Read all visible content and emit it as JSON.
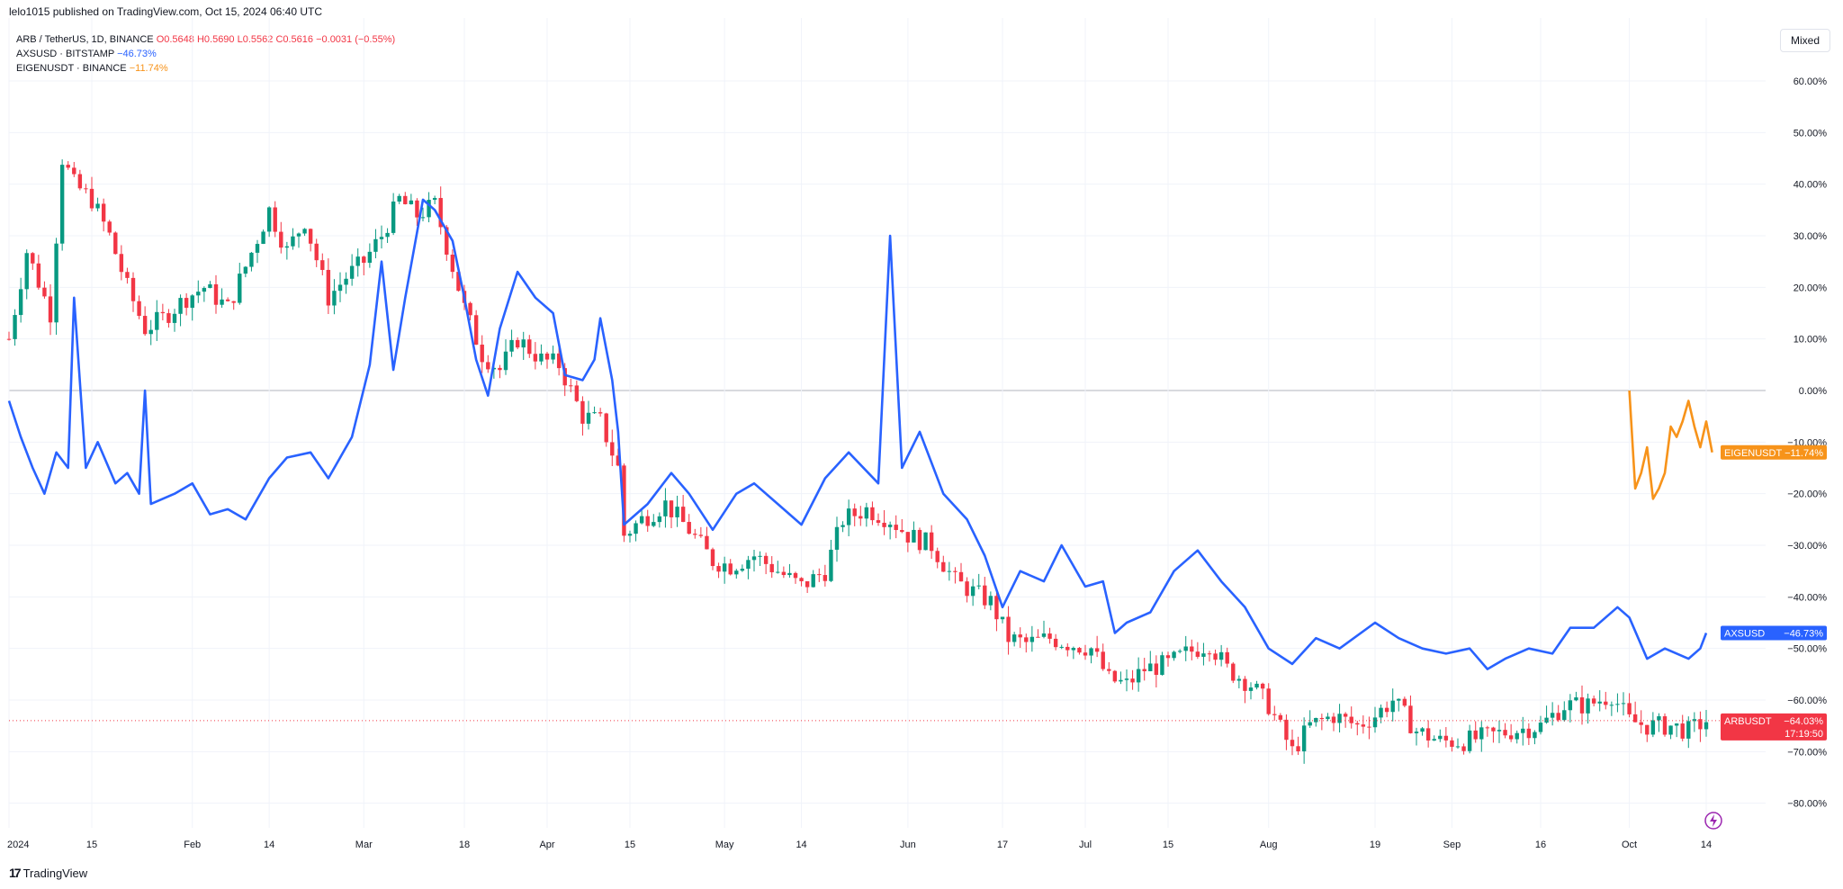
{
  "header": {
    "text": "lelo1015 published on TradingView.com, Oct 15, 2024 06:40 UTC"
  },
  "legend": {
    "arb": {
      "name": "ARB / TetherUS, 1D, BINANCE",
      "o": "O0.5648",
      "h": "H0.5690",
      "l": "L0.5562",
      "c": "C0.5616",
      "chg": "−0.0031 (−0.55%)"
    },
    "ax": {
      "name": "AXSUSD · BITSTAMP",
      "chg": "−46.73%"
    },
    "eigen": {
      "name": "EIGENUSDT · BINANCE",
      "chg": "−11.74%"
    }
  },
  "toolbar": {
    "mixed_label": "Mixed"
  },
  "footer": {
    "brand": "TradingView"
  },
  "colors": {
    "up": "#089981",
    "down": "#f23645",
    "ax": "#2962ff",
    "eigen": "#f7931a",
    "grid": "#f0f3fa",
    "zero": "#b2b5be"
  },
  "chart_data": {
    "type": "line",
    "y_unit": "% change",
    "ylim": [
      -85,
      65
    ],
    "x_range": [
      "2023-12-31",
      "2024-10-25"
    ],
    "y_ticks": [
      "60.00%",
      "50.00%",
      "40.00%",
      "30.00%",
      "20.00%",
      "10.00%",
      "0.00%",
      "−10.00%",
      "−20.00%",
      "−30.00%",
      "−40.00%",
      "−50.00%",
      "−60.00%",
      "−70.00%",
      "−80.00%"
    ],
    "y_tick_values": [
      60,
      50,
      40,
      30,
      20,
      10,
      0,
      -10,
      -20,
      -30,
      -40,
      -50,
      -60,
      -70,
      -80
    ],
    "x_ticks": [
      {
        "label": "2024",
        "date": "2024-01-01"
      },
      {
        "label": "15",
        "date": "2024-01-15"
      },
      {
        "label": "Feb",
        "date": "2024-02-01"
      },
      {
        "label": "14",
        "date": "2024-02-14"
      },
      {
        "label": "Mar",
        "date": "2024-03-01"
      },
      {
        "label": "18",
        "date": "2024-03-18"
      },
      {
        "label": "Apr",
        "date": "2024-04-01"
      },
      {
        "label": "15",
        "date": "2024-04-15"
      },
      {
        "label": "May",
        "date": "2024-05-01"
      },
      {
        "label": "14",
        "date": "2024-05-14"
      },
      {
        "label": "Jun",
        "date": "2024-06-01"
      },
      {
        "label": "17",
        "date": "2024-06-17"
      },
      {
        "label": "Jul",
        "date": "2024-07-01"
      },
      {
        "label": "15",
        "date": "2024-07-15"
      },
      {
        "label": "Aug",
        "date": "2024-08-01"
      },
      {
        "label": "19",
        "date": "2024-08-19"
      },
      {
        "label": "Sep",
        "date": "2024-09-01"
      },
      {
        "label": "16",
        "date": "2024-09-16"
      },
      {
        "label": "Oct",
        "date": "2024-10-01"
      },
      {
        "label": "14",
        "date": "2024-10-14"
      }
    ],
    "series": [
      {
        "name": "ARBUSDT",
        "style": "candles",
        "last_label": "−64.03%",
        "countdown": "17:19:50",
        "close_points": [
          [
            "2024-01-01",
            10
          ],
          [
            "2024-01-04",
            27
          ],
          [
            "2024-01-08",
            15
          ],
          [
            "2024-01-10",
            45
          ],
          [
            "2024-01-12",
            40
          ],
          [
            "2024-01-15",
            37
          ],
          [
            "2024-01-18",
            30
          ],
          [
            "2024-01-21",
            20
          ],
          [
            "2024-01-24",
            12
          ],
          [
            "2024-01-27",
            14
          ],
          [
            "2024-01-31",
            18
          ],
          [
            "2024-02-03",
            20
          ],
          [
            "2024-02-07",
            16
          ],
          [
            "2024-02-10",
            24
          ],
          [
            "2024-02-14",
            35
          ],
          [
            "2024-02-17",
            27
          ],
          [
            "2024-02-20",
            33
          ],
          [
            "2024-02-24",
            18
          ],
          [
            "2024-02-27",
            22
          ],
          [
            "2024-03-01",
            25
          ],
          [
            "2024-03-04",
            30
          ],
          [
            "2024-03-07",
            37
          ],
          [
            "2024-03-10",
            34
          ],
          [
            "2024-03-13",
            36
          ],
          [
            "2024-03-15",
            28
          ],
          [
            "2024-03-18",
            16
          ],
          [
            "2024-03-21",
            7
          ],
          [
            "2024-03-24",
            4
          ],
          [
            "2024-03-27",
            10
          ],
          [
            "2024-03-31",
            6
          ],
          [
            "2024-04-03",
            5
          ],
          [
            "2024-04-07",
            -5
          ],
          [
            "2024-04-10",
            -6
          ],
          [
            "2024-04-13",
            -15
          ],
          [
            "2024-04-14",
            -28
          ],
          [
            "2024-04-17",
            -25
          ],
          [
            "2024-04-21",
            -22
          ],
          [
            "2024-04-25",
            -27
          ],
          [
            "2024-04-29",
            -33
          ],
          [
            "2024-05-02",
            -34
          ],
          [
            "2024-05-06",
            -32
          ],
          [
            "2024-05-10",
            -35
          ],
          [
            "2024-05-14",
            -38
          ],
          [
            "2024-05-18",
            -35
          ],
          [
            "2024-05-21",
            -25
          ],
          [
            "2024-05-25",
            -23
          ],
          [
            "2024-05-29",
            -25
          ],
          [
            "2024-06-01",
            -28
          ],
          [
            "2024-06-05",
            -30
          ],
          [
            "2024-06-09",
            -37
          ],
          [
            "2024-06-12",
            -39
          ],
          [
            "2024-06-15",
            -41
          ],
          [
            "2024-06-18",
            -48
          ],
          [
            "2024-06-21",
            -49
          ],
          [
            "2024-06-25",
            -48
          ],
          [
            "2024-06-28",
            -49
          ],
          [
            "2024-07-02",
            -50
          ],
          [
            "2024-07-05",
            -56
          ],
          [
            "2024-07-08",
            -57
          ],
          [
            "2024-07-11",
            -54
          ],
          [
            "2024-07-15",
            -53
          ],
          [
            "2024-07-18",
            -51
          ],
          [
            "2024-07-22",
            -49
          ],
          [
            "2024-07-25",
            -54
          ],
          [
            "2024-07-29",
            -57
          ],
          [
            "2024-08-01",
            -61
          ],
          [
            "2024-08-05",
            -70
          ],
          [
            "2024-08-08",
            -65
          ],
          [
            "2024-08-12",
            -63
          ],
          [
            "2024-08-16",
            -65
          ],
          [
            "2024-08-19",
            -63
          ],
          [
            "2024-08-22",
            -60
          ],
          [
            "2024-08-26",
            -66
          ],
          [
            "2024-08-30",
            -68
          ],
          [
            "2024-09-03",
            -68
          ],
          [
            "2024-09-07",
            -67
          ],
          [
            "2024-09-11",
            -66
          ],
          [
            "2024-09-16",
            -65
          ],
          [
            "2024-09-20",
            -61
          ],
          [
            "2024-09-24",
            -61
          ],
          [
            "2024-09-28",
            -59
          ],
          [
            "2024-10-01",
            -64
          ],
          [
            "2024-10-04",
            -65
          ],
          [
            "2024-10-08",
            -65
          ],
          [
            "2024-10-11",
            -66
          ],
          [
            "2024-10-14",
            -64
          ]
        ]
      },
      {
        "name": "AXSUSD",
        "style": "line",
        "last_label": "−46.73%",
        "points": [
          [
            "2024-01-01",
            -2
          ],
          [
            "2024-01-03",
            -9
          ],
          [
            "2024-01-05",
            -15
          ],
          [
            "2024-01-07",
            -20
          ],
          [
            "2024-01-09",
            -12
          ],
          [
            "2024-01-11",
            -15
          ],
          [
            "2024-01-12",
            18
          ],
          [
            "2024-01-14",
            -15
          ],
          [
            "2024-01-16",
            -10
          ],
          [
            "2024-01-19",
            -18
          ],
          [
            "2024-01-21",
            -16
          ],
          [
            "2024-01-23",
            -20
          ],
          [
            "2024-01-24",
            0
          ],
          [
            "2024-01-25",
            -22
          ],
          [
            "2024-01-29",
            -20
          ],
          [
            "2024-02-01",
            -18
          ],
          [
            "2024-02-04",
            -24
          ],
          [
            "2024-02-07",
            -23
          ],
          [
            "2024-02-10",
            -25
          ],
          [
            "2024-02-14",
            -17
          ],
          [
            "2024-02-17",
            -13
          ],
          [
            "2024-02-21",
            -12
          ],
          [
            "2024-02-24",
            -17
          ],
          [
            "2024-02-28",
            -9
          ],
          [
            "2024-03-02",
            5
          ],
          [
            "2024-03-04",
            25
          ],
          [
            "2024-03-06",
            4
          ],
          [
            "2024-03-08",
            18
          ],
          [
            "2024-03-11",
            37
          ],
          [
            "2024-03-13",
            35
          ],
          [
            "2024-03-16",
            29
          ],
          [
            "2024-03-18",
            18
          ],
          [
            "2024-03-20",
            6
          ],
          [
            "2024-03-22",
            -1
          ],
          [
            "2024-03-24",
            12
          ],
          [
            "2024-03-27",
            23
          ],
          [
            "2024-03-30",
            18
          ],
          [
            "2024-04-02",
            15
          ],
          [
            "2024-04-04",
            3
          ],
          [
            "2024-04-07",
            2
          ],
          [
            "2024-04-09",
            6
          ],
          [
            "2024-04-10",
            14
          ],
          [
            "2024-04-12",
            2
          ],
          [
            "2024-04-13",
            -8
          ],
          [
            "2024-04-14",
            -26
          ],
          [
            "2024-04-18",
            -22
          ],
          [
            "2024-04-22",
            -16
          ],
          [
            "2024-04-25",
            -20
          ],
          [
            "2024-04-29",
            -27
          ],
          [
            "2024-05-03",
            -20
          ],
          [
            "2024-05-06",
            -18
          ],
          [
            "2024-05-10",
            -22
          ],
          [
            "2024-05-14",
            -26
          ],
          [
            "2024-05-18",
            -17
          ],
          [
            "2024-05-22",
            -12
          ],
          [
            "2024-05-27",
            -18
          ],
          [
            "2024-05-29",
            30
          ],
          [
            "2024-05-31",
            -15
          ],
          [
            "2024-06-03",
            -8
          ],
          [
            "2024-06-07",
            -20
          ],
          [
            "2024-06-11",
            -25
          ],
          [
            "2024-06-14",
            -32
          ],
          [
            "2024-06-17",
            -42
          ],
          [
            "2024-06-20",
            -35
          ],
          [
            "2024-06-24",
            -37
          ],
          [
            "2024-06-27",
            -30
          ],
          [
            "2024-07-01",
            -38
          ],
          [
            "2024-07-04",
            -37
          ],
          [
            "2024-07-06",
            -47
          ],
          [
            "2024-07-08",
            -45
          ],
          [
            "2024-07-12",
            -43
          ],
          [
            "2024-07-16",
            -35
          ],
          [
            "2024-07-20",
            -31
          ],
          [
            "2024-07-24",
            -37
          ],
          [
            "2024-07-28",
            -42
          ],
          [
            "2024-08-01",
            -50
          ],
          [
            "2024-08-05",
            -53
          ],
          [
            "2024-08-09",
            -48
          ],
          [
            "2024-08-13",
            -50
          ],
          [
            "2024-08-19",
            -45
          ],
          [
            "2024-08-23",
            -48
          ],
          [
            "2024-08-27",
            -50
          ],
          [
            "2024-08-31",
            -51
          ],
          [
            "2024-09-04",
            -50
          ],
          [
            "2024-09-07",
            -54
          ],
          [
            "2024-09-10",
            -52
          ],
          [
            "2024-09-14",
            -50
          ],
          [
            "2024-09-18",
            -51
          ],
          [
            "2024-09-21",
            -46
          ],
          [
            "2024-09-25",
            -46
          ],
          [
            "2024-09-29",
            -42
          ],
          [
            "2024-10-01",
            -44
          ],
          [
            "2024-10-04",
            -52
          ],
          [
            "2024-10-07",
            -50
          ],
          [
            "2024-10-11",
            -52
          ],
          [
            "2024-10-13",
            -50
          ],
          [
            "2024-10-14",
            -47
          ]
        ]
      },
      {
        "name": "EIGENUSDT",
        "style": "line",
        "last_label": "−11.74%",
        "points": [
          [
            "2024-10-01",
            0
          ],
          [
            "2024-10-02",
            -19
          ],
          [
            "2024-10-03",
            -16
          ],
          [
            "2024-10-04",
            -11
          ],
          [
            "2024-10-05",
            -21
          ],
          [
            "2024-10-06",
            -19
          ],
          [
            "2024-10-07",
            -16
          ],
          [
            "2024-10-08",
            -7
          ],
          [
            "2024-10-09",
            -9
          ],
          [
            "2024-10-10",
            -6
          ],
          [
            "2024-10-11",
            -2
          ],
          [
            "2024-10-12",
            -7
          ],
          [
            "2024-10-13",
            -11
          ],
          [
            "2024-10-14",
            -6
          ],
          [
            "2024-10-15",
            -12
          ]
        ]
      }
    ]
  }
}
